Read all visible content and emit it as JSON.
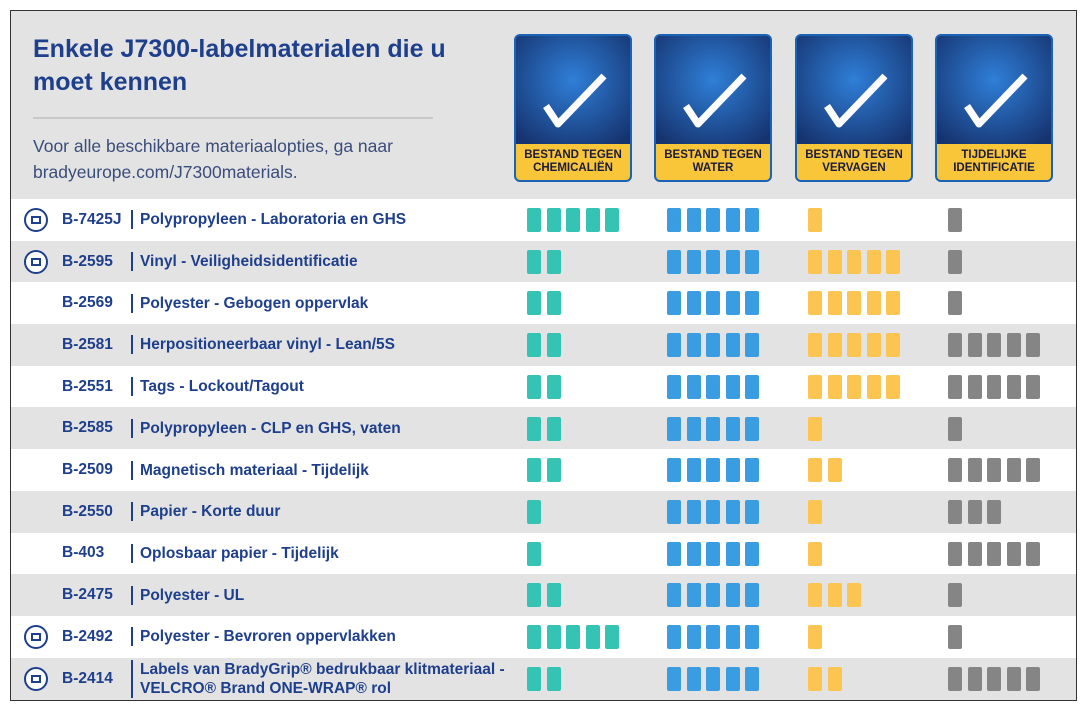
{
  "header": {
    "title": "Enkele J7300-labelmaterialen die u moet kennen",
    "subtitle": "Voor alle beschikbare materiaalopties, ga naar bradyeurope.com/J7300materials."
  },
  "columns": [
    {
      "label": "BESTAND TEGEN CHEMICALIËN",
      "color": "#35c3b3"
    },
    {
      "label": "BESTAND TEGEN WATER",
      "color": "#3a9de2"
    },
    {
      "label": "BESTAND TEGEN VERVAGEN",
      "color": "#fcc552"
    },
    {
      "label": "TIJDELIJKE IDENTIFICATIE",
      "color": "#858585"
    }
  ],
  "rows": [
    {
      "code": "B-7425J",
      "description": "Polypropyleen - Laboratoria en GHS",
      "icon": true,
      "ratings": [
        5,
        5,
        1,
        1
      ]
    },
    {
      "code": "B-2595",
      "description": "Vinyl - Veiligheidsidentificatie",
      "icon": true,
      "ratings": [
        2,
        5,
        5,
        1
      ]
    },
    {
      "code": "B-2569",
      "description": "Polyester - Gebogen oppervlak",
      "icon": false,
      "ratings": [
        2,
        5,
        5,
        1
      ]
    },
    {
      "code": "B-2581",
      "description": "Herpositioneerbaar vinyl - Lean/5S",
      "icon": false,
      "ratings": [
        2,
        5,
        5,
        5
      ]
    },
    {
      "code": "B-2551",
      "description": "Tags - Lockout/Tagout",
      "icon": false,
      "ratings": [
        2,
        5,
        5,
        5
      ]
    },
    {
      "code": "B-2585",
      "description": "Polypropyleen - CLP en GHS, vaten",
      "icon": false,
      "ratings": [
        2,
        5,
        1,
        1
      ]
    },
    {
      "code": "B-2509",
      "description": "Magnetisch materiaal - Tijdelijk",
      "icon": false,
      "ratings": [
        2,
        5,
        2,
        5
      ]
    },
    {
      "code": "B-2550",
      "description": "Papier - Korte duur",
      "icon": false,
      "ratings": [
        1,
        5,
        1,
        3
      ]
    },
    {
      "code": "B-403",
      "description": "Oplosbaar papier - Tijdelijk",
      "icon": false,
      "ratings": [
        1,
        5,
        1,
        5
      ]
    },
    {
      "code": "B-2475",
      "description": "Polyester - UL",
      "icon": false,
      "ratings": [
        2,
        5,
        3,
        1
      ]
    },
    {
      "code": "B-2492",
      "description": "Polyester - Bevroren oppervlakken",
      "icon": true,
      "ratings": [
        5,
        5,
        1,
        1
      ]
    },
    {
      "code": "B-2414",
      "description": "Labels van BradyGrip® bedrukbaar klitmateriaal - VELCRO® Brand ONE-WRAP® rol",
      "icon": true,
      "ratings": [
        2,
        5,
        2,
        5
      ]
    }
  ]
}
